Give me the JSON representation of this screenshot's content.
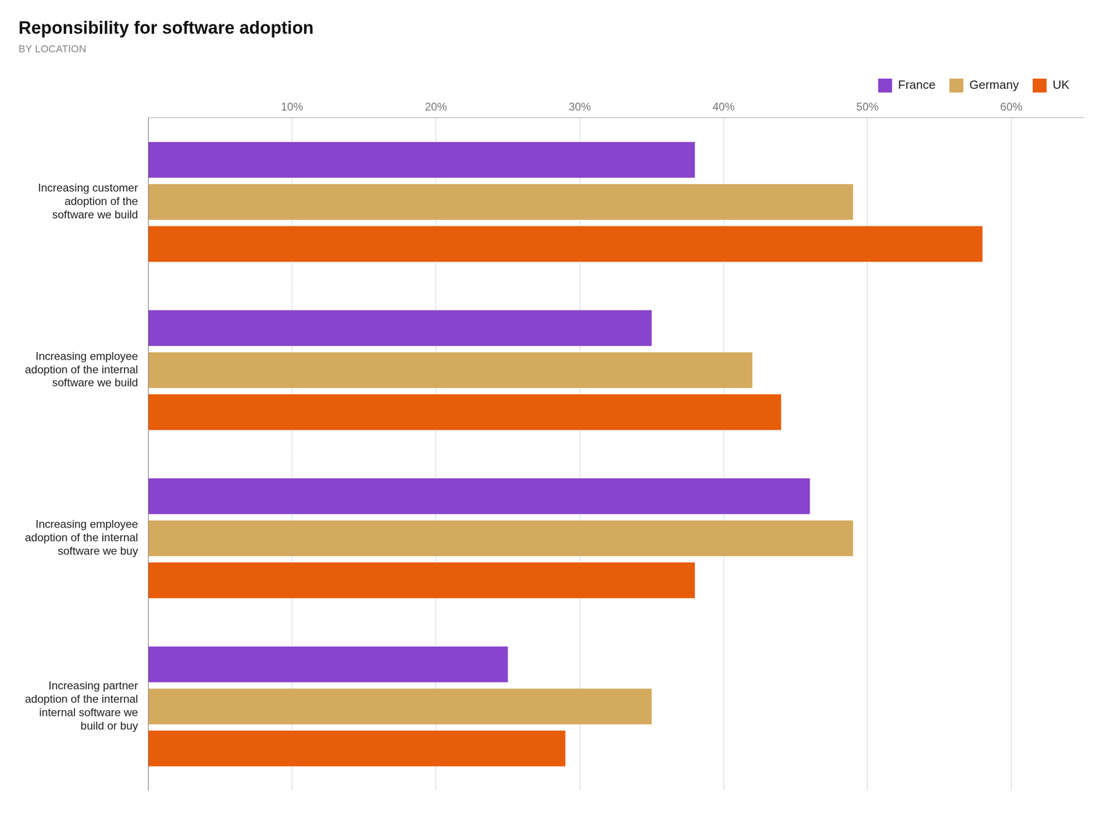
{
  "chart_data": {
    "type": "bar",
    "orientation": "horizontal",
    "title": "Reponsibility for software adoption",
    "subtitle": "BY LOCATION",
    "categories": [
      "Increasing customer\nadoption of the\nsoftware we build",
      "Increasing employee\nadoption of the internal\nsoftware we build",
      "Increasing employee\nadoption of the internal\nsoftware we buy",
      "Increasing partner\nadoption of the internal\ninternal software we\nbuild or buy"
    ],
    "series": [
      {
        "name": "France",
        "color": "#8844cc",
        "values": [
          38,
          35,
          46,
          25
        ]
      },
      {
        "name": "Germany",
        "color": "#d4aa5f",
        "values": [
          49,
          42,
          49,
          35
        ]
      },
      {
        "name": "UK",
        "color": "#e85d0a",
        "values": [
          58,
          44,
          38,
          29
        ]
      }
    ],
    "xlim": [
      0,
      65
    ],
    "xticks": [
      {
        "value": 0,
        "label": ""
      },
      {
        "value": 10,
        "label": "10%"
      },
      {
        "value": 20,
        "label": "20%"
      },
      {
        "value": 30,
        "label": "30%"
      },
      {
        "value": 40,
        "label": "40%"
      },
      {
        "value": 50,
        "label": "50%"
      },
      {
        "value": 60,
        "label": "60%"
      }
    ],
    "grid": true,
    "legend": "upper right"
  }
}
